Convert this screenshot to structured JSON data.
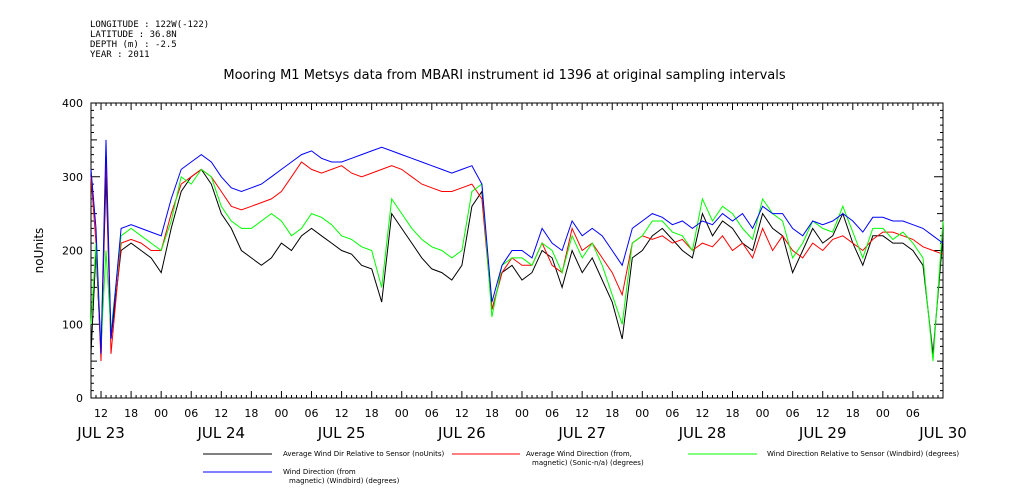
{
  "header": {
    "meta_lines": [
      "LONGITUDE : 122W(-122)",
      "LATITUDE : 36.8N",
      "DEPTH (m) : -2.5",
      "YEAR : 2011"
    ],
    "title": "Mooring M1 Metsys data from MBARI instrument id 1396 at original sampling intervals"
  },
  "chart_data": {
    "type": "line",
    "title": "Mooring M1 Metsys data from MBARI instrument id 1396 at original sampling intervals",
    "ylabel": "noUnits",
    "xlabel": "",
    "ylim": [
      0,
      400
    ],
    "yticks": [
      "0",
      "100",
      "200",
      "300",
      "400"
    ],
    "xlim_hours": [
      10,
      180
    ],
    "hour_ticks": [
      "12",
      "18",
      "00",
      "06",
      "12",
      "18",
      "00",
      "06",
      "12",
      "18",
      "00",
      "06",
      "12",
      "18",
      "00",
      "06",
      "12",
      "18",
      "00",
      "06",
      "12",
      "18",
      "00",
      "06",
      "12",
      "18",
      "00",
      "06"
    ],
    "date_labels": [
      "JUL 23",
      "JUL 24",
      "JUL 25",
      "JUL 26",
      "JUL 27",
      "JUL 28",
      "JUL 29",
      "JUL 30"
    ],
    "x_hours": [
      10,
      11,
      12,
      13,
      14,
      16,
      18,
      20,
      22,
      24,
      26,
      28,
      30,
      32,
      34,
      36,
      38,
      40,
      42,
      44,
      46,
      48,
      50,
      52,
      54,
      56,
      58,
      60,
      62,
      64,
      66,
      68,
      70,
      72,
      74,
      76,
      78,
      80,
      82,
      84,
      86,
      88,
      90,
      92,
      94,
      96,
      98,
      100,
      102,
      104,
      106,
      108,
      110,
      112,
      114,
      116,
      118,
      120,
      122,
      124,
      126,
      128,
      130,
      132,
      134,
      136,
      138,
      140,
      142,
      144,
      146,
      148,
      150,
      152,
      154,
      156,
      158,
      160,
      162,
      164,
      166,
      168,
      170,
      172,
      174,
      176,
      178,
      180
    ],
    "series": [
      {
        "name": "Average Wind Dir Relative to Sensor (noUnits)",
        "color": "#000000",
        "values": [
          60,
          200,
          60,
          300,
          80,
          200,
          210,
          200,
          190,
          170,
          230,
          280,
          300,
          310,
          290,
          250,
          230,
          200,
          190,
          180,
          190,
          210,
          200,
          220,
          230,
          220,
          210,
          200,
          195,
          180,
          175,
          130,
          250,
          230,
          210,
          190,
          175,
          170,
          160,
          180,
          260,
          280,
          120,
          170,
          180,
          160,
          170,
          200,
          190,
          150,
          200,
          170,
          190,
          160,
          130,
          80,
          190,
          200,
          220,
          230,
          215,
          200,
          190,
          250,
          220,
          240,
          230,
          210,
          200,
          250,
          230,
          220,
          170,
          200,
          230,
          210,
          220,
          250,
          210,
          180,
          220,
          220,
          210,
          210,
          200,
          180,
          60,
          220
        ]
      },
      {
        "name": "Average Wind Direction (from, magnetic) (Sonic-n/a) (degrees)",
        "color": "#ff0000",
        "values": [
          300,
          210,
          50,
          330,
          60,
          210,
          215,
          210,
          200,
          200,
          250,
          290,
          300,
          310,
          300,
          280,
          260,
          255,
          260,
          265,
          270,
          280,
          300,
          320,
          310,
          305,
          310,
          315,
          305,
          300,
          305,
          310,
          315,
          310,
          300,
          290,
          285,
          280,
          280,
          285,
          290,
          270,
          120,
          170,
          190,
          180,
          180,
          210,
          180,
          170,
          230,
          200,
          210,
          190,
          170,
          140,
          210,
          220,
          215,
          220,
          210,
          215,
          200,
          210,
          205,
          220,
          200,
          210,
          190,
          230,
          200,
          220,
          200,
          190,
          210,
          200,
          215,
          220,
          210,
          200,
          215,
          225,
          225,
          220,
          215,
          205,
          200,
          195
        ]
      },
      {
        "name": "Wind Direction Relative to Sensor (Windbird) (degrees)",
        "color": "#00ff00",
        "values": [
          100,
          210,
          70,
          200,
          90,
          220,
          230,
          220,
          210,
          200,
          240,
          300,
          290,
          310,
          300,
          260,
          240,
          230,
          230,
          240,
          250,
          240,
          220,
          230,
          250,
          245,
          235,
          220,
          215,
          205,
          200,
          150,
          270,
          250,
          230,
          215,
          205,
          200,
          190,
          200,
          280,
          290,
          110,
          180,
          190,
          190,
          180,
          210,
          200,
          170,
          220,
          190,
          210,
          180,
          140,
          100,
          210,
          220,
          240,
          240,
          225,
          220,
          200,
          270,
          240,
          260,
          250,
          230,
          215,
          270,
          250,
          240,
          190,
          210,
          240,
          230,
          225,
          260,
          225,
          190,
          230,
          230,
          215,
          225,
          210,
          190,
          50,
          240
        ]
      },
      {
        "name": "Wind Direction (from magnetic) (Windbird) (degrees)",
        "color": "#0000ff",
        "values": [
          310,
          230,
          60,
          350,
          80,
          230,
          235,
          230,
          225,
          220,
          270,
          310,
          320,
          330,
          320,
          300,
          285,
          280,
          285,
          290,
          300,
          310,
          320,
          330,
          335,
          325,
          320,
          320,
          325,
          330,
          335,
          340,
          335,
          330,
          325,
          320,
          315,
          310,
          305,
          310,
          315,
          290,
          130,
          180,
          200,
          200,
          190,
          230,
          210,
          200,
          240,
          220,
          230,
          220,
          200,
          180,
          230,
          240,
          250,
          245,
          235,
          240,
          230,
          240,
          235,
          250,
          240,
          250,
          230,
          260,
          250,
          250,
          230,
          220,
          240,
          235,
          240,
          250,
          240,
          225,
          245,
          245,
          240,
          240,
          235,
          230,
          220,
          210
        ]
      }
    ],
    "legend": [
      "Average Wind Dir Relative to Sensor (noUnits)",
      "Average Wind Direction (from, magnetic) (Sonic-n/a) (degrees)",
      "Wind Direction Relative to Sensor (Windbird) (degrees)",
      "Wind Direction (from magnetic) (Windbird) (degrees)"
    ],
    "legend_lines": [
      [
        "Average Wind Dir Relative to Sensor (noUnits)"
      ],
      [
        "Average Wind Direction (from,",
        "magnetic) (Sonic-n/a) (degrees)"
      ],
      [
        "Wind Direction Relative to Sensor (Windbird) (degrees)"
      ],
      [
        "Wind Direction (from",
        "magnetic) (Windbird) (degrees)"
      ]
    ],
    "grid": false,
    "legend_placement": "bottom"
  }
}
